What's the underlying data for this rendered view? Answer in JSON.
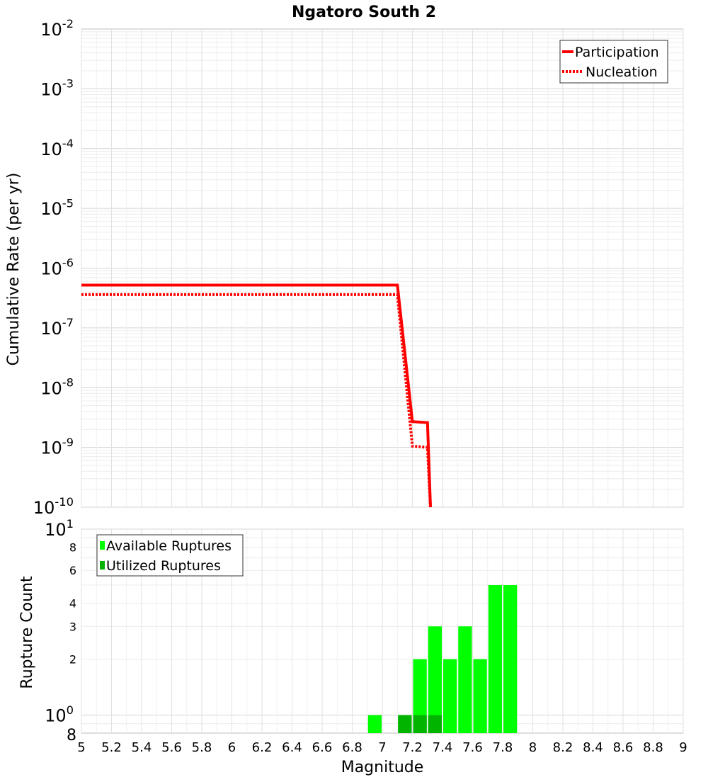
{
  "title": "Ngatoro South 2",
  "chart_data": [
    {
      "type": "line",
      "ylabel": "Cumulative Rate (per yr)",
      "yscale": "log",
      "ylim": [
        1e-10,
        0.01
      ],
      "xlim": [
        5,
        9
      ],
      "grid": true,
      "y_tick_labels": [
        {
          "base": "10",
          "exp": "-10",
          "value": 1e-10
        },
        {
          "base": "10",
          "exp": "-9",
          "value": 1e-09
        },
        {
          "base": "10",
          "exp": "-8",
          "value": 1e-08
        },
        {
          "base": "10",
          "exp": "-7",
          "value": 1e-07
        },
        {
          "base": "10",
          "exp": "-6",
          "value": 1e-06
        },
        {
          "base": "10",
          "exp": "-5",
          "value": 1e-05
        },
        {
          "base": "10",
          "exp": "-4",
          "value": 0.0001
        },
        {
          "base": "10",
          "exp": "-3",
          "value": 0.001
        },
        {
          "base": "10",
          "exp": "-2",
          "value": 0.01
        }
      ],
      "legend_position": "top-right",
      "series": [
        {
          "name": "Participation",
          "color": "#ff0000",
          "style": "solid",
          "points": [
            [
              5.0,
              5.2e-07
            ],
            [
              7.1,
              5.2e-07
            ],
            [
              7.2,
              2.7e-09
            ],
            [
              7.3,
              2.6e-09
            ],
            [
              7.32,
              1e-10
            ]
          ]
        },
        {
          "name": "Nucleation",
          "color": "#ff0000",
          "style": "dotted",
          "points": [
            [
              5.0,
              3.6e-07
            ],
            [
              7.1,
              3.6e-07
            ],
            [
              7.2,
              1.05e-09
            ],
            [
              7.3,
              1e-09
            ],
            [
              7.32,
              1e-10
            ]
          ]
        }
      ]
    },
    {
      "type": "bar",
      "ylabel": "Rupture Count",
      "xlabel": "Magnitude",
      "yscale": "log",
      "ylim": [
        0.8,
        10
      ],
      "xlim": [
        5,
        9
      ],
      "grid": true,
      "bin_width": 0.1,
      "x_ticks": [
        "5",
        "5.2",
        "5.4",
        "5.6",
        "5.8",
        "6",
        "6.2",
        "6.4",
        "6.6",
        "6.8",
        "7",
        "7.2",
        "7.4",
        "7.6",
        "7.8",
        "8",
        "8.2",
        "8.4",
        "8.6",
        "8.8",
        "9"
      ],
      "y_major_ticks": [
        {
          "base": "10",
          "exp": "0",
          "value": 1
        },
        {
          "base": "10",
          "exp": "1",
          "value": 10
        }
      ],
      "y_minor_ticks": [
        {
          "label": "8",
          "value": 8
        },
        {
          "label": "6",
          "value": 6
        },
        {
          "label": "4",
          "value": 4
        },
        {
          "label": "3",
          "value": 3
        },
        {
          "label": "2",
          "value": 2
        }
      ],
      "y_bottom_label": {
        "label": "8",
        "value": 0.8
      },
      "legend_position": "top-left",
      "series": [
        {
          "name": "Available Ruptures",
          "color": "#00ff00",
          "bins": [
            {
              "x": 6.95,
              "count": 1
            },
            {
              "x": 7.15,
              "count": 1
            },
            {
              "x": 7.25,
              "count": 2
            },
            {
              "x": 7.35,
              "count": 3
            },
            {
              "x": 7.45,
              "count": 2
            },
            {
              "x": 7.55,
              "count": 3
            },
            {
              "x": 7.65,
              "count": 2
            },
            {
              "x": 7.75,
              "count": 5
            },
            {
              "x": 7.85,
              "count": 5
            }
          ]
        },
        {
          "name": "Utilized Ruptures",
          "color": "#00b400",
          "bins": [
            {
              "x": 7.15,
              "count": 1
            },
            {
              "x": 7.25,
              "count": 1
            },
            {
              "x": 7.35,
              "count": 1
            }
          ]
        }
      ]
    }
  ]
}
